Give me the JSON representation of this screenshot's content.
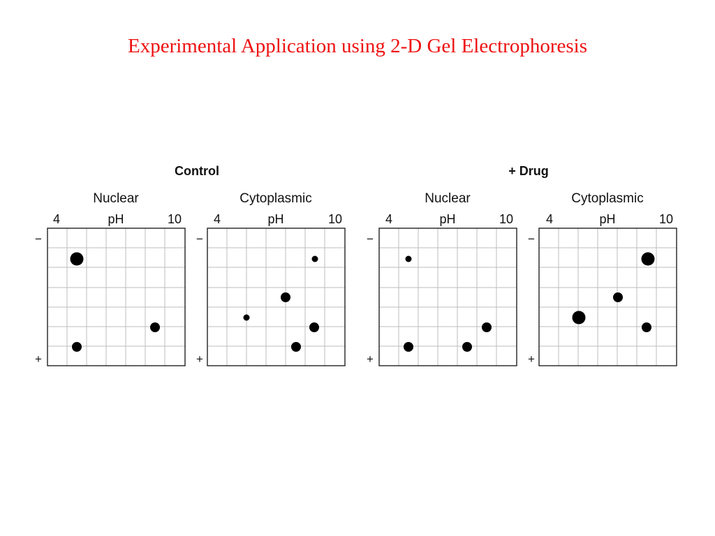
{
  "title": "Experimental Application using 2-D Gel Electrophoresis",
  "groups": [
    {
      "label": "Control"
    },
    {
      "label": "+ Drug"
    }
  ],
  "panels": [
    {
      "label": "Nuclear",
      "ph_min": "4",
      "ph_axis": "pH",
      "ph_max": "10",
      "minus": "−",
      "plus": "+"
    },
    {
      "label": "Cytoplasmic",
      "ph_min": "4",
      "ph_axis": "pH",
      "ph_max": "10",
      "minus": "−",
      "plus": "+"
    },
    {
      "label": "Nuclear",
      "ph_min": "4",
      "ph_axis": "pH",
      "ph_max": "10",
      "minus": "−",
      "plus": "+"
    },
    {
      "label": "Cytoplasmic",
      "ph_min": "4",
      "ph_axis": "pH",
      "ph_max": "10",
      "minus": "−",
      "plus": "+"
    }
  ]
}
